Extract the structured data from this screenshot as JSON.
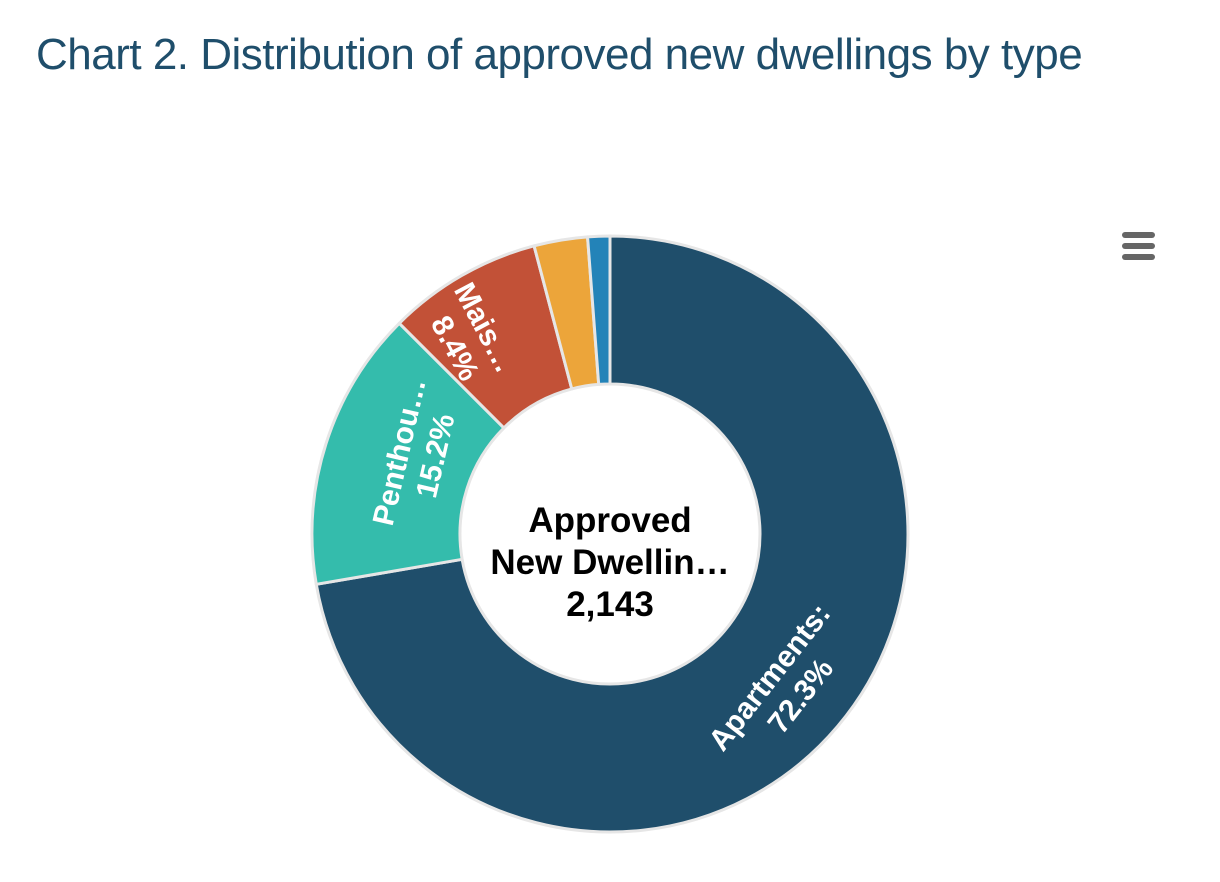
{
  "title": "Chart 2. Distribution of approved new dwellings by type",
  "menu": {
    "icon": "hamburger-menu-icon"
  },
  "center": {
    "line1": "Approved",
    "line2": "New Dwellin…",
    "total": "2,143"
  },
  "labels": {
    "apartments_name": "Apartments:",
    "apartments_pct": "72.3%",
    "penthouses_name": "Penthou…",
    "penthouses_pct": "15.2%",
    "maisonettes_name": "Mais…",
    "maisonettes_pct": "8.4%"
  },
  "chart_data": {
    "type": "pie",
    "variant": "donut",
    "title": "Chart 2. Distribution of approved new dwellings by type",
    "center_text": "Approved New Dwellin… 2,143",
    "total": 2143,
    "categories": [
      "Apartments",
      "Penthou…",
      "Mais…",
      "(unlabeled orange)",
      "(unlabeled blue)"
    ],
    "values": [
      72.3,
      15.2,
      8.4,
      2.9,
      1.2
    ],
    "unit": "%",
    "colors": [
      "#1f4e6b",
      "#34bcac",
      "#c25137",
      "#eca53a",
      "#2383b8"
    ],
    "legend": "none",
    "start_angle": 0,
    "direction": "clockwise"
  }
}
